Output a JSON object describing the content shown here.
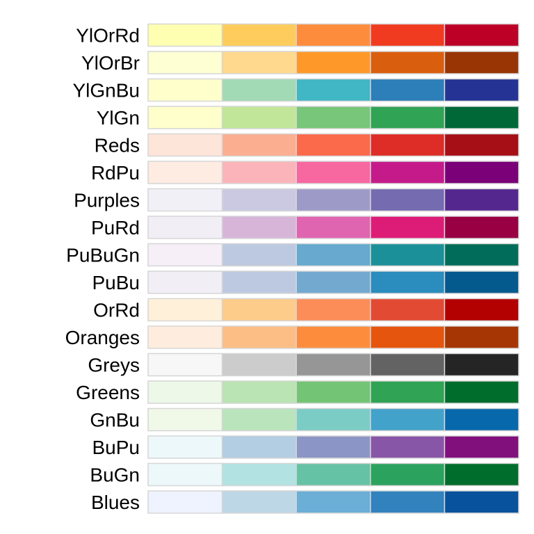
{
  "chart_data": {
    "type": "heatmap",
    "title": "",
    "xlabel": "",
    "ylabel": "",
    "grid": false,
    "legend": "none",
    "palettes": [
      {
        "name": "YlOrRd",
        "colors": [
          "#ffffb2",
          "#fecc5c",
          "#fd8d3c",
          "#f03b20",
          "#bd0026"
        ]
      },
      {
        "name": "YlOrBr",
        "colors": [
          "#ffffd4",
          "#fed98e",
          "#fe9929",
          "#d95f0e",
          "#993404"
        ]
      },
      {
        "name": "YlGnBu",
        "colors": [
          "#ffffcc",
          "#a1dab4",
          "#41b6c4",
          "#2c7fb8",
          "#253494"
        ]
      },
      {
        "name": "YlGn",
        "colors": [
          "#ffffcc",
          "#c2e699",
          "#78c679",
          "#31a354",
          "#006837"
        ]
      },
      {
        "name": "Reds",
        "colors": [
          "#fee5d9",
          "#fcae91",
          "#fb6a4a",
          "#de2d26",
          "#a50f15"
        ]
      },
      {
        "name": "RdPu",
        "colors": [
          "#feebe2",
          "#fbb4b9",
          "#f768a1",
          "#c51b8a",
          "#7a0177"
        ]
      },
      {
        "name": "Purples",
        "colors": [
          "#f2f0f7",
          "#cbc9e2",
          "#9e9ac8",
          "#756bb1",
          "#54278f"
        ]
      },
      {
        "name": "PuRd",
        "colors": [
          "#f1eef6",
          "#d7b5d8",
          "#df65b0",
          "#dd1c77",
          "#980043"
        ]
      },
      {
        "name": "PuBuGn",
        "colors": [
          "#f6eff7",
          "#bdc9e1",
          "#67a9cf",
          "#1c9099",
          "#016c59"
        ]
      },
      {
        "name": "PuBu",
        "colors": [
          "#f1eef6",
          "#bdc9e1",
          "#74a9cf",
          "#2b8cbe",
          "#045a8d"
        ]
      },
      {
        "name": "OrRd",
        "colors": [
          "#fef0d9",
          "#fdcc8a",
          "#fc8d59",
          "#e34a33",
          "#b30000"
        ]
      },
      {
        "name": "Oranges",
        "colors": [
          "#feedde",
          "#fdbe85",
          "#fd8d3c",
          "#e6550d",
          "#a63603"
        ]
      },
      {
        "name": "Greys",
        "colors": [
          "#f7f7f7",
          "#cccccc",
          "#969696",
          "#636363",
          "#252525"
        ]
      },
      {
        "name": "Greens",
        "colors": [
          "#edf8e9",
          "#bae4b3",
          "#74c476",
          "#31a354",
          "#006d2c"
        ]
      },
      {
        "name": "GnBu",
        "colors": [
          "#f0f9e8",
          "#bae4bc",
          "#7bccc4",
          "#43a2ca",
          "#0868ac"
        ]
      },
      {
        "name": "BuPu",
        "colors": [
          "#edf8fb",
          "#b3cde3",
          "#8c96c6",
          "#8856a7",
          "#810f7c"
        ]
      },
      {
        "name": "BuGn",
        "colors": [
          "#edf8fb",
          "#b2e2e2",
          "#66c2a4",
          "#2ca25f",
          "#006d2c"
        ]
      },
      {
        "name": "Blues",
        "colors": [
          "#eff3ff",
          "#bdd7e7",
          "#6baed6",
          "#3182bd",
          "#08519c"
        ]
      }
    ]
  }
}
